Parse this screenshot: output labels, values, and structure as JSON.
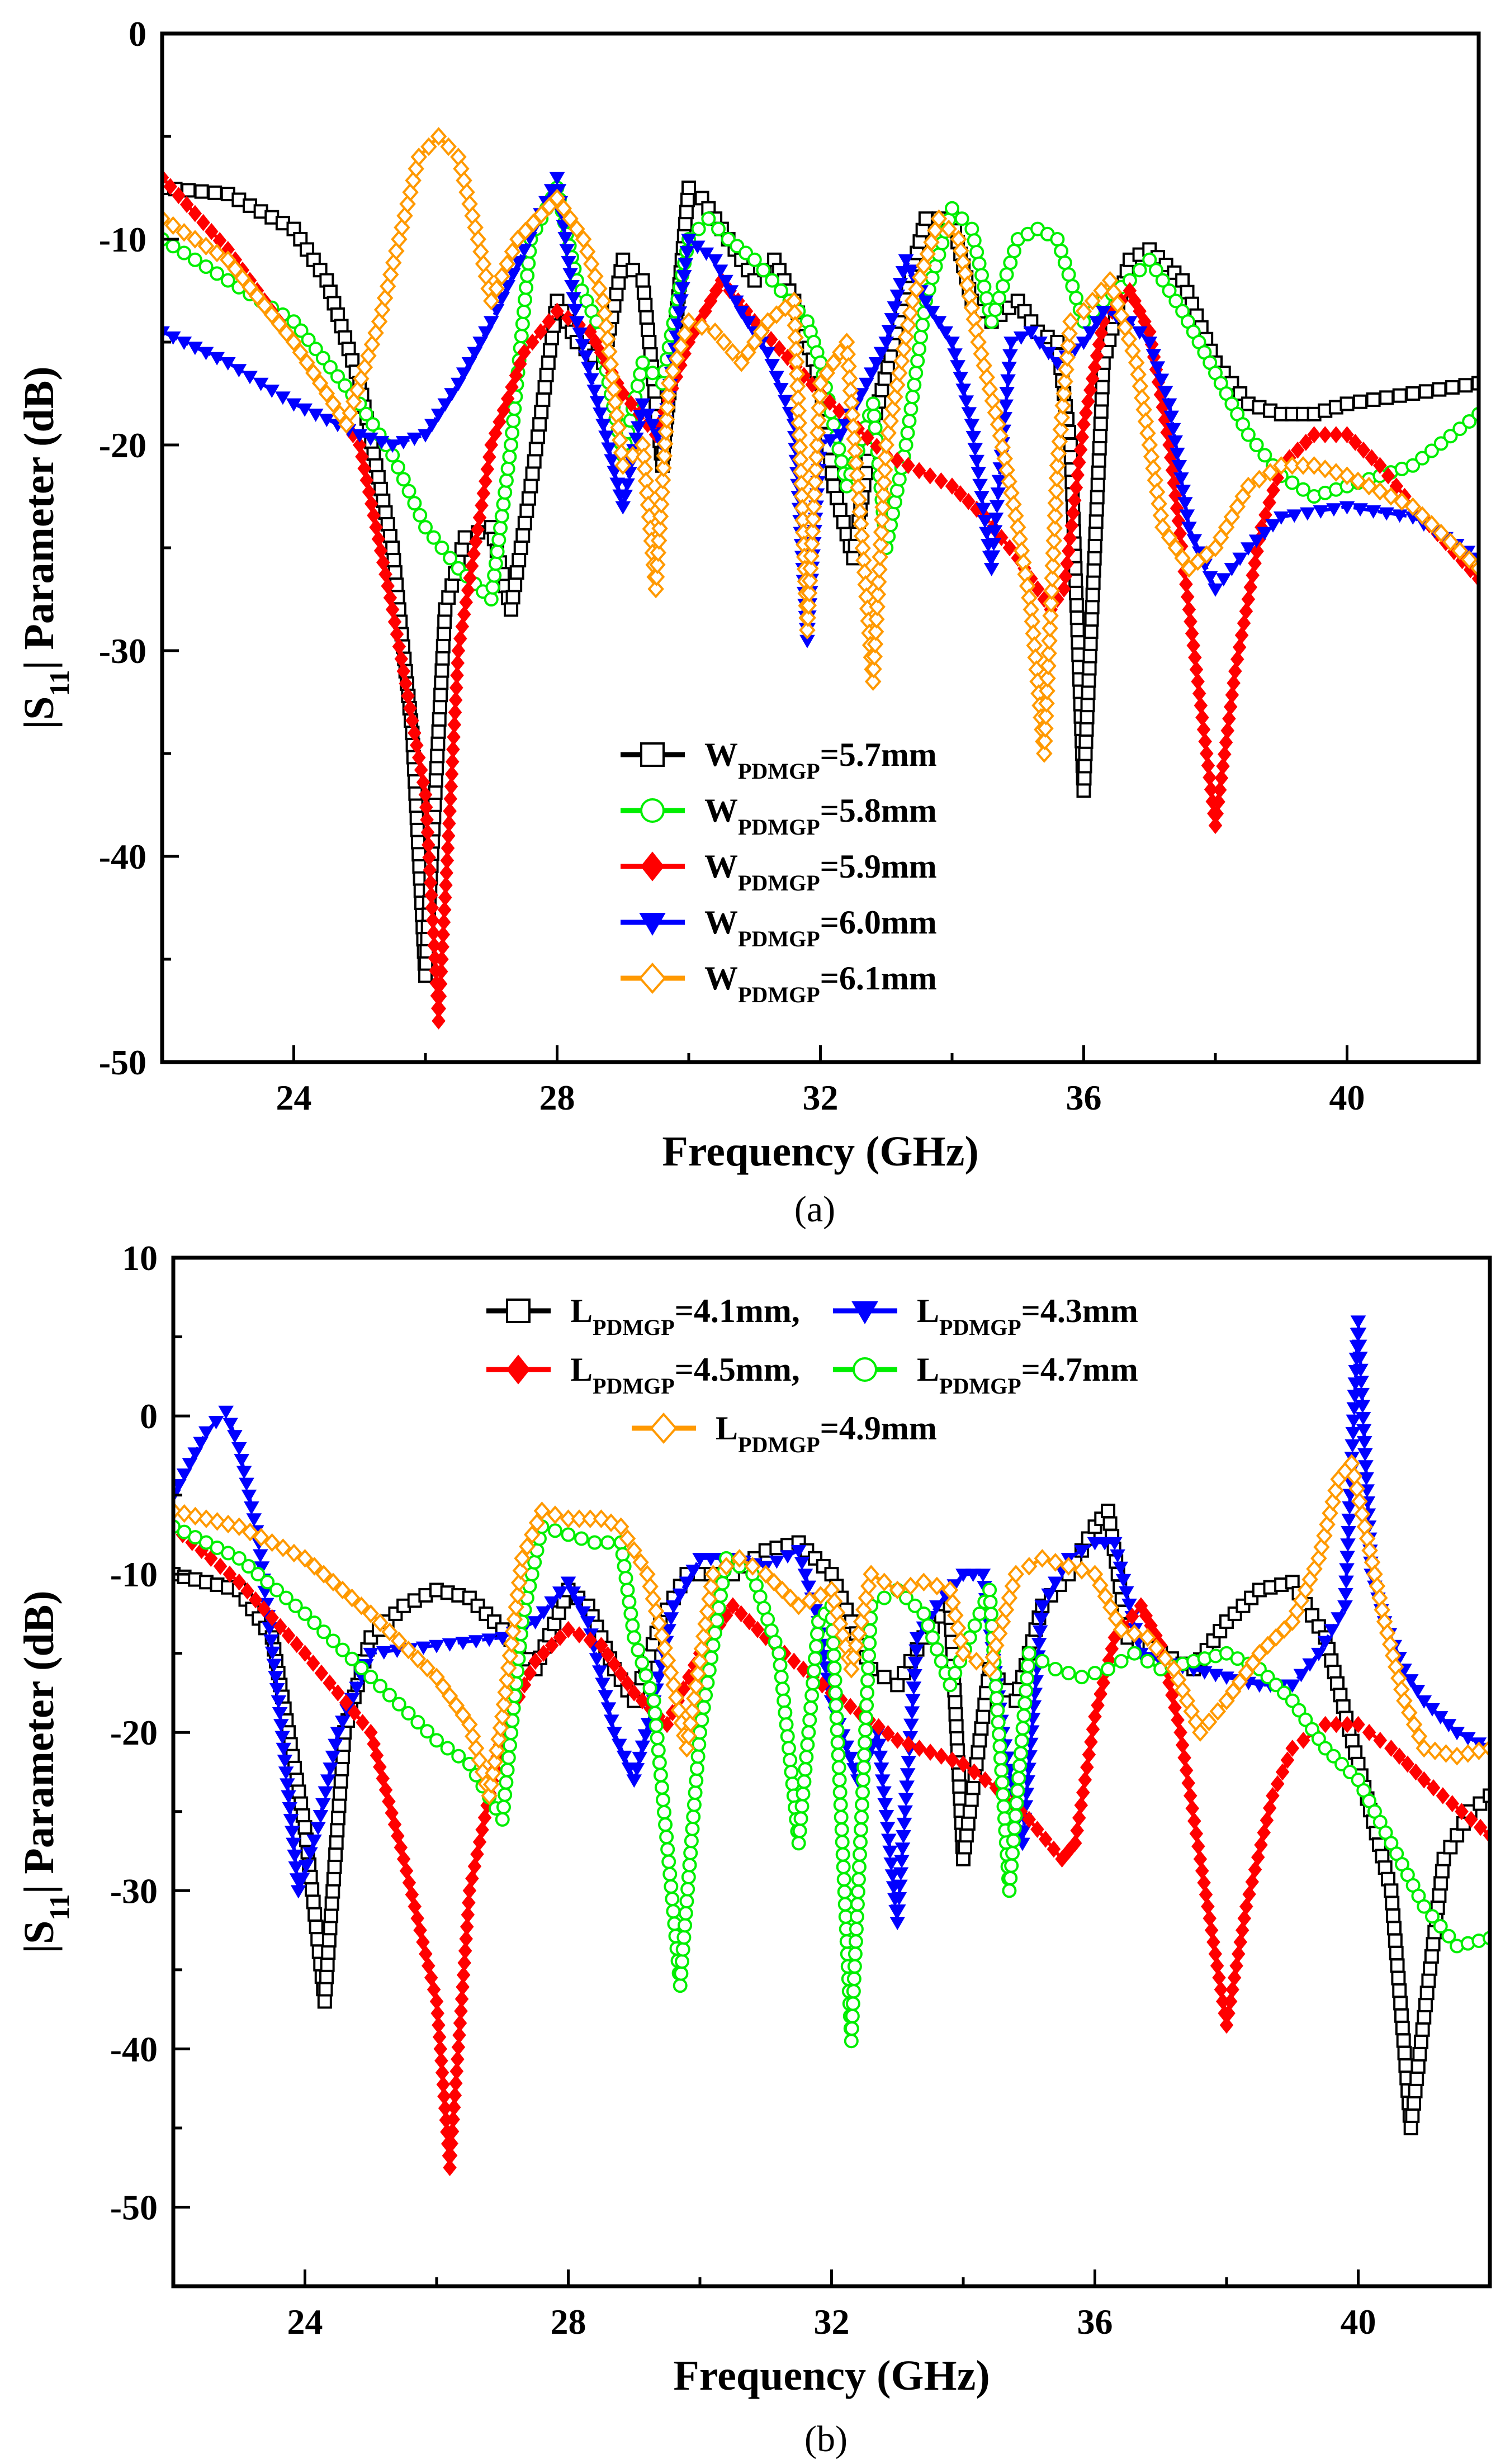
{
  "chart_data": [
    {
      "type": "line",
      "panel": "a",
      "caption": "(a)",
      "xlabel": "Frequency (GHz)",
      "ylabel_main": "|S",
      "ylabel_sub": "11",
      "ylabel_rest": "| Parameter (dB)",
      "xlim": [
        22,
        42
      ],
      "ylim": [
        -50,
        0
      ],
      "xticks": [
        24,
        28,
        32,
        36,
        40
      ],
      "yticks": [
        0,
        -10,
        -20,
        -30,
        -40,
        -50
      ],
      "legend_position": "center",
      "series": [
        {
          "name_main": "W",
          "name_sub": "PDMGP",
          "name_rest": "=5.7mm",
          "color": "#000000",
          "marker": "square-open",
          "dash": "dot-dash",
          "x": [
            22,
            23,
            24,
            24.5,
            25,
            25.5,
            25.8,
            26,
            26.3,
            26.6,
            27,
            27.3,
            27.6,
            28,
            28.3,
            28.7,
            29,
            29.3,
            29.6,
            30,
            30.2,
            30.6,
            31,
            31.3,
            31.6,
            32,
            32.2,
            32.5,
            32.8,
            33.2,
            33.6,
            34,
            34.3,
            34.6,
            35,
            35.3,
            35.6,
            35.8,
            36,
            36.3,
            36.7,
            37,
            37.5,
            38,
            38.5,
            39,
            39.5,
            40,
            41,
            42
          ],
          "y": [
            -7.5,
            -7.8,
            -9.5,
            -12,
            -17,
            -25,
            -34,
            -45.8,
            -28,
            -24.5,
            -24,
            -28,
            -22,
            -13,
            -15,
            -16,
            -11,
            -12,
            -21,
            -7.5,
            -8,
            -10,
            -12,
            -11,
            -13,
            -17,
            -22,
            -25.5,
            -19,
            -14,
            -9,
            -9,
            -13,
            -14,
            -13,
            -14.5,
            -15,
            -20,
            -36.8,
            -16,
            -11,
            -10.5,
            -12,
            -16,
            -18,
            -18.5,
            -18.5,
            -18,
            -17.5,
            -17
          ]
        },
        {
          "name_main": "W",
          "name_sub": "PDMGP",
          "name_rest": "=5.8mm",
          "color": "#00ee00",
          "marker": "circle-open",
          "dash": "dot-dash",
          "x": [
            22,
            23,
            24,
            25,
            25.5,
            26,
            26.5,
            27,
            27.3,
            27.6,
            28,
            28.3,
            28.6,
            29,
            29.3,
            29.6,
            30,
            30.3,
            30.6,
            31,
            31.4,
            31.8,
            32,
            32.4,
            32.8,
            33,
            33.3,
            33.6,
            34,
            34.3,
            34.6,
            35,
            35.3,
            35.6,
            36,
            36.3,
            36.7,
            37,
            37.5,
            38,
            38.5,
            39,
            39.5,
            40,
            41,
            42
          ],
          "y": [
            -10,
            -12,
            -14,
            -18,
            -20.5,
            -24,
            -26,
            -27.5,
            -20,
            -10,
            -7.5,
            -12,
            -14,
            -20.5,
            -16,
            -17,
            -10,
            -9,
            -10,
            -11,
            -12.5,
            -14,
            -16,
            -22,
            -18,
            -25,
            -20,
            -13,
            -8.5,
            -9.5,
            -14,
            -10,
            -9.5,
            -10,
            -14,
            -13,
            -12,
            -11,
            -13.5,
            -16.5,
            -19.5,
            -21.5,
            -22.5,
            -22,
            -21,
            -18.5
          ]
        },
        {
          "name_main": "W",
          "name_sub": "PDMGP",
          "name_rest": "=5.9mm",
          "color": "#ff0000",
          "marker": "diamond-filled",
          "dash": "dash-dot",
          "x": [
            22,
            23,
            24,
            25,
            25.5,
            26,
            26.2,
            26.5,
            27,
            27.5,
            28,
            28.5,
            29,
            29.5,
            30,
            30.5,
            31,
            32,
            33,
            34,
            34.5,
            35,
            35.5,
            35.7,
            36,
            36.3,
            36.7,
            37,
            37.3,
            37.6,
            38,
            38.3,
            38.7,
            39,
            39.5,
            40,
            40.5,
            41,
            42
          ],
          "y": [
            -7,
            -10.5,
            -15,
            -20,
            -28,
            -37,
            -48,
            -30,
            -20,
            -15.5,
            -13.5,
            -14.5,
            -17.5,
            -19.5,
            -15,
            -12,
            -14,
            -17.5,
            -20.5,
            -22,
            -23.5,
            -25.5,
            -28,
            -27,
            -19,
            -14,
            -12.5,
            -14.5,
            -20,
            -28,
            -38.5,
            -31,
            -24,
            -21,
            -19.5,
            -19.5,
            -21,
            -23,
            -26.5
          ]
        },
        {
          "name_main": "W",
          "name_sub": "PDMGP",
          "name_rest": "=6.0mm",
          "color": "#0000ff",
          "marker": "triangle-down-filled",
          "dash": "dash-dot",
          "x": [
            22,
            23,
            24,
            25,
            25.5,
            26,
            26.5,
            27,
            27.5,
            28,
            28.3,
            28.7,
            29,
            29.3,
            29.6,
            30,
            30.4,
            30.8,
            31.2,
            31.6,
            31.8,
            32,
            32.3,
            32.7,
            33,
            33.3,
            33.6,
            34,
            34.3,
            34.6,
            34.9,
            35.2,
            35.6,
            36,
            36.3,
            36.7,
            37,
            37.3,
            37.6,
            38,
            38.5,
            39,
            40,
            41,
            42
          ],
          "y": [
            -14.5,
            -16,
            -18,
            -19.5,
            -20,
            -19.5,
            -17,
            -14,
            -10.5,
            -7,
            -14,
            -19,
            -23,
            -18,
            -20,
            -10,
            -11,
            -13.5,
            -15.5,
            -19,
            -29.5,
            -20,
            -19.5,
            -17,
            -15,
            -11,
            -13,
            -15,
            -19,
            -26,
            -15,
            -14.5,
            -16,
            -15,
            -13.5,
            -14,
            -15,
            -18,
            -24,
            -27,
            -25,
            -23.5,
            -23,
            -23.5,
            -25.5
          ]
        },
        {
          "name_main": "W",
          "name_sub": "PDMGP",
          "name_rest": "=6.1mm",
          "color": "#ff9900",
          "marker": "diamond-open",
          "dash": "dash-dot",
          "x": [
            22,
            23,
            24,
            24.8,
            25.3,
            25.6,
            25.9,
            26.2,
            26.5,
            26.8,
            27,
            27.4,
            28,
            28.4,
            28.7,
            29,
            29.3,
            29.5,
            29.7,
            30,
            30.4,
            30.8,
            31.2,
            31.6,
            31.8,
            32,
            32.4,
            32.8,
            33,
            33.4,
            33.8,
            34.1,
            34.4,
            34.7,
            35,
            35.2,
            35.4,
            35.6,
            35.8,
            36,
            36.4,
            36.8,
            37.2,
            37.6,
            38,
            38.5,
            39,
            39.5,
            40,
            41,
            42
          ],
          "y": [
            -9,
            -11,
            -15,
            -19,
            -14,
            -10,
            -6,
            -5,
            -6,
            -10,
            -13,
            -10,
            -8,
            -10,
            -13,
            -21,
            -20,
            -27,
            -17,
            -14,
            -14.5,
            -16,
            -14,
            -13,
            -29,
            -17,
            -15,
            -31.5,
            -20,
            -13,
            -9,
            -10,
            -15,
            -19,
            -24,
            -28,
            -35,
            -21,
            -14,
            -13.5,
            -12,
            -16,
            -24,
            -26,
            -25,
            -22,
            -21,
            -21,
            -21.5,
            -23,
            -26
          ]
        }
      ]
    },
    {
      "type": "line",
      "panel": "b",
      "caption": "(b)",
      "xlabel": "Frequency (GHz)",
      "ylabel_main": "|S",
      "ylabel_sub": "11",
      "ylabel_rest": "| Parameter (dB)",
      "xlim": [
        22,
        42
      ],
      "ylim": [
        -55,
        10
      ],
      "xticks": [
        24,
        28,
        32,
        36,
        40
      ],
      "yticks": [
        10,
        0,
        -10,
        -20,
        -30,
        -40,
        -50
      ],
      "legend_position": "top",
      "series": [
        {
          "name_main": "L",
          "name_sub": "PDMGP",
          "name_rest": "=4.1mm,",
          "color": "#000000",
          "marker": "square-open",
          "dash": "dot-dash",
          "x": [
            22,
            23,
            23.5,
            24,
            24.3,
            24.6,
            25,
            25.5,
            26,
            26.5,
            27,
            27.5,
            28,
            28.3,
            28.7,
            29,
            29.4,
            29.8,
            30,
            30.5,
            31,
            31.5,
            32,
            32.3,
            32.6,
            33,
            33.4,
            33.8,
            34,
            34.4,
            34.8,
            35.2,
            35.6,
            36,
            36.2,
            36.5,
            37,
            37.5,
            38,
            38.5,
            39,
            39.5,
            40,
            40.5,
            40.8,
            41,
            41.3,
            41.7,
            42
          ],
          "y": [
            -10,
            -11,
            -14,
            -26,
            -37,
            -20,
            -14,
            -12,
            -11,
            -11.5,
            -13.5,
            -16,
            -11,
            -12,
            -16,
            -18,
            -13,
            -10,
            -10,
            -10,
            -8.5,
            -8,
            -10,
            -13,
            -16,
            -17,
            -14,
            -12,
            -28,
            -16,
            -18,
            -12,
            -10,
            -7,
            -6,
            -14,
            -15,
            -16,
            -13,
            -11,
            -10.5,
            -14,
            -22,
            -30,
            -45,
            -38,
            -28,
            -25,
            -24
          ]
        },
        {
          "name_main": "L",
          "name_sub": "PDMGP",
          "name_rest": "=4.3mm",
          "color": "#0000ff",
          "marker": "triangle-down-filled",
          "dash": "dash-dot",
          "x": [
            22,
            22.5,
            22.8,
            23,
            23.3,
            23.6,
            23.9,
            24.2,
            24.5,
            25,
            26,
            27,
            27.5,
            28,
            28.3,
            28.7,
            29,
            29.3,
            29.6,
            30,
            30.5,
            31,
            31.5,
            31.8,
            32,
            32.4,
            32.7,
            33,
            33.3,
            33.6,
            34,
            34.3,
            34.6,
            34.9,
            35.2,
            35.6,
            36,
            36.3,
            36.7,
            37,
            37.5,
            38,
            38.5,
            39,
            39.4,
            39.8,
            40,
            40.2,
            40.4,
            40.7,
            41,
            41.5,
            42
          ],
          "y": [
            -5,
            -1,
            0.3,
            -2,
            -8,
            -18,
            -30,
            -26,
            -20,
            -15,
            -14.5,
            -14,
            -13,
            -10.5,
            -13,
            -20,
            -23,
            -18,
            -12,
            -9,
            -9,
            -9.5,
            -8.5,
            -13,
            -18,
            -23,
            -20,
            -32,
            -14,
            -12,
            -10,
            -10,
            -20,
            -27,
            -12,
            -9,
            -8,
            -8,
            -15,
            -15.5,
            -16,
            -16.5,
            -17,
            -17,
            -15,
            -12,
            6,
            -10,
            -13,
            -16,
            -18,
            -20,
            -21
          ]
        },
        {
          "name_main": "L",
          "name_sub": "PDMGP",
          "name_rest": "=4.5mm,",
          "color": "#ff0000",
          "marker": "diamond-filled",
          "dash": "dash-dot",
          "x": [
            22,
            23,
            24,
            25,
            25.5,
            26,
            26.2,
            26.5,
            27,
            27.5,
            28,
            28.5,
            29,
            29.5,
            30,
            30.5,
            31,
            32,
            33,
            34,
            34.5,
            35,
            35.5,
            35.7,
            36,
            36.3,
            36.7,
            37,
            37.3,
            37.6,
            38,
            38.3,
            38.7,
            39,
            39.5,
            40,
            40.5,
            41,
            42
          ],
          "y": [
            -7,
            -10.5,
            -15,
            -20,
            -28,
            -37,
            -47.5,
            -30,
            -20,
            -15.5,
            -13.5,
            -14.5,
            -17.5,
            -19.5,
            -15,
            -12,
            -14,
            -17.5,
            -20.5,
            -22,
            -23.5,
            -25.5,
            -28,
            -27,
            -19,
            -14,
            -12,
            -14.5,
            -20,
            -28,
            -38.5,
            -31,
            -24,
            -21,
            -19.5,
            -19.5,
            -21,
            -23,
            -26.5
          ]
        },
        {
          "name_main": "L",
          "name_sub": "PDMGP",
          "name_rest": "=4.7mm",
          "color": "#00ee00",
          "marker": "circle-open",
          "dash": "dot-dash",
          "x": [
            22,
            23,
            24,
            25,
            26,
            26.5,
            27,
            27.3,
            27.6,
            28,
            28.4,
            28.8,
            29,
            29.3,
            29.7,
            30,
            30.4,
            30.8,
            31.2,
            31.5,
            31.8,
            32,
            32.3,
            32.6,
            33,
            33.4,
            33.8,
            34.1,
            34.4,
            34.7,
            35,
            35.4,
            35.8,
            36.2,
            36.6,
            37,
            37.5,
            38,
            38.5,
            39,
            39.5,
            40,
            40.5,
            41,
            41.5,
            42
          ],
          "y": [
            -7,
            -9,
            -12.5,
            -16.5,
            -20.5,
            -22,
            -25.5,
            -13,
            -7,
            -7.5,
            -8,
            -8,
            -14,
            -18,
            -36,
            -20,
            -9,
            -10,
            -15,
            -27,
            -13,
            -12,
            -39.5,
            -12,
            -11,
            -12.5,
            -17,
            -14,
            -11,
            -30,
            -15,
            -16,
            -16.5,
            -16,
            -15,
            -16,
            -15.5,
            -15,
            -16,
            -18,
            -21,
            -23,
            -27,
            -31,
            -33.5,
            -33
          ]
        },
        {
          "name_main": "L",
          "name_sub": "PDMGP",
          "name_rest": "=4.9mm",
          "color": "#ff9900",
          "marker": "diamond-open",
          "dash": "dash-dot",
          "x": [
            22,
            23,
            24,
            25,
            26,
            26.5,
            26.8,
            27,
            27.3,
            27.6,
            28,
            28.5,
            28.8,
            29.2,
            29.6,
            29.8,
            30.2,
            30.6,
            31,
            31.5,
            32,
            32.3,
            32.6,
            33,
            33.4,
            33.8,
            34,
            34.4,
            34.8,
            35.2,
            35.6,
            36,
            36.4,
            36.8,
            37.2,
            37.6,
            38,
            38.5,
            39,
            39.4,
            39.7,
            39.9,
            40.1,
            40.4,
            40.7,
            41,
            41.5,
            42
          ],
          "y": [
            -6,
            -7,
            -9,
            -12.5,
            -16.5,
            -19.5,
            -24,
            -19,
            -9,
            -6,
            -6.5,
            -6.5,
            -7,
            -10,
            -17,
            -21,
            -10,
            -9,
            -10,
            -12,
            -11,
            -16,
            -10,
            -11,
            -10.5,
            -11,
            -15,
            -16,
            -10,
            -9,
            -9.5,
            -10,
            -13.5,
            -14,
            -16,
            -20,
            -18,
            -15,
            -13,
            -9,
            -4,
            -3,
            -7,
            -13,
            -18,
            -21,
            -21.5,
            -21
          ]
        }
      ]
    }
  ]
}
